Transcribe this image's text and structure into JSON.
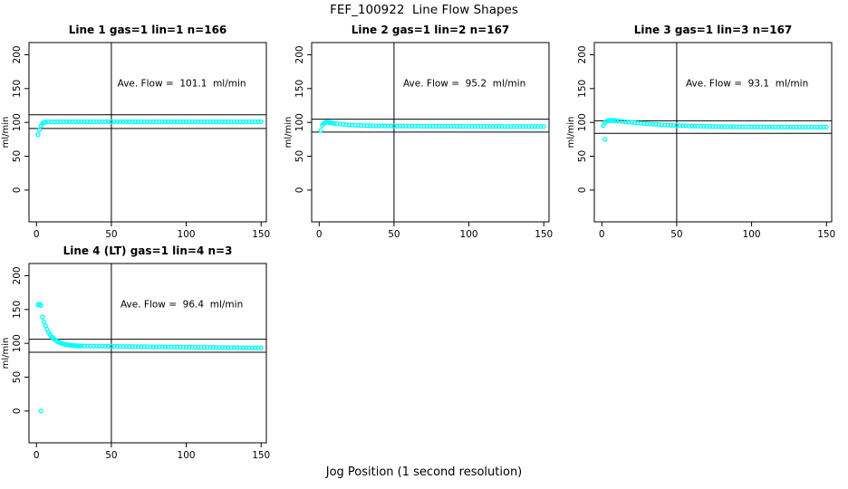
{
  "page": {
    "title": "FEF_100922  Line Flow Shapes",
    "xlabel": "Jog Position (1 second resolution)"
  },
  "chart_settings": {
    "ylabel": "ml/min",
    "xticks": [
      0,
      50,
      100,
      150
    ],
    "yticks": [
      0,
      50,
      100,
      150,
      200
    ],
    "xlim": [
      -5,
      153.5
    ],
    "ylim": [
      -47,
      218
    ],
    "point_color": "#00ffff",
    "line_color": "#000000",
    "vline_x": 50
  },
  "chart_data": [
    {
      "type": "scatter",
      "title": "Line 1 gas=1 lin=1 n=166",
      "annotation": "Ave. Flow =  101.1  ml/min",
      "ave_flow": 101.1,
      "hlines": [
        111.2,
        91.0
      ],
      "outliers": [],
      "points": [
        [
          1,
          82
        ],
        [
          2,
          89
        ],
        [
          3,
          95
        ],
        [
          4,
          98.5
        ],
        [
          5,
          100
        ],
        [
          6,
          100.5
        ],
        [
          8,
          100.8
        ],
        [
          10,
          101
        ],
        [
          12,
          101
        ],
        [
          14,
          101
        ],
        [
          16,
          101
        ],
        [
          18,
          101
        ],
        [
          20,
          101
        ],
        [
          22,
          101
        ],
        [
          24,
          101
        ],
        [
          26,
          101
        ],
        [
          28,
          101
        ],
        [
          30,
          101
        ],
        [
          32,
          101
        ],
        [
          34,
          101
        ],
        [
          36,
          101
        ],
        [
          38,
          101
        ],
        [
          40,
          101
        ],
        [
          42,
          101
        ],
        [
          44,
          101
        ],
        [
          46,
          101
        ],
        [
          48,
          101
        ],
        [
          50,
          101
        ],
        [
          52,
          101
        ],
        [
          54,
          101
        ],
        [
          56,
          101
        ],
        [
          58,
          101
        ],
        [
          60,
          101
        ],
        [
          62,
          101
        ],
        [
          64,
          101
        ],
        [
          66,
          101
        ],
        [
          68,
          101
        ],
        [
          70,
          101
        ],
        [
          72,
          101
        ],
        [
          74,
          101
        ],
        [
          76,
          101
        ],
        [
          78,
          101
        ],
        [
          80,
          101
        ],
        [
          82,
          101
        ],
        [
          84,
          101
        ],
        [
          86,
          101
        ],
        [
          88,
          101
        ],
        [
          90,
          101
        ],
        [
          92,
          101
        ],
        [
          94,
          101
        ],
        [
          96,
          101
        ],
        [
          98,
          101
        ],
        [
          100,
          101
        ],
        [
          102,
          101
        ],
        [
          104,
          101
        ],
        [
          106,
          101
        ],
        [
          108,
          101
        ],
        [
          110,
          101
        ],
        [
          112,
          101
        ],
        [
          114,
          101
        ],
        [
          116,
          101
        ],
        [
          118,
          101
        ],
        [
          120,
          101
        ],
        [
          122,
          101
        ],
        [
          124,
          101
        ],
        [
          126,
          101
        ],
        [
          128,
          101
        ],
        [
          130,
          101
        ],
        [
          132,
          101
        ],
        [
          134,
          101
        ],
        [
          136,
          101
        ],
        [
          138,
          101
        ],
        [
          140,
          101
        ],
        [
          142,
          101
        ],
        [
          144,
          101
        ],
        [
          146,
          101
        ],
        [
          148,
          101
        ],
        [
          150,
          101
        ]
      ]
    },
    {
      "type": "scatter",
      "title": "Line 2 gas=1 lin=2 n=167",
      "annotation": "Ave. Flow =  95.2  ml/min",
      "ave_flow": 95.2,
      "hlines": [
        104.7,
        85.7
      ],
      "outliers": [],
      "points": [
        [
          1,
          88
        ],
        [
          2,
          95.5
        ],
        [
          3,
          98.5
        ],
        [
          4,
          99.8
        ],
        [
          5,
          100.2
        ],
        [
          6,
          100.1
        ],
        [
          7,
          99.8
        ],
        [
          8,
          99.4
        ],
        [
          9,
          99
        ],
        [
          10,
          98.6
        ],
        [
          12,
          98
        ],
        [
          14,
          97.5
        ],
        [
          16,
          97.1
        ],
        [
          18,
          96.7
        ],
        [
          20,
          96.4
        ],
        [
          22,
          96.1
        ],
        [
          24,
          95.9
        ],
        [
          26,
          95.7
        ],
        [
          28,
          95.5
        ],
        [
          30,
          95.4
        ],
        [
          32,
          95.2
        ],
        [
          34,
          95.1
        ],
        [
          36,
          95
        ],
        [
          38,
          94.9
        ],
        [
          40,
          94.9
        ],
        [
          42,
          94.8
        ],
        [
          44,
          94.8
        ],
        [
          46,
          94.7
        ],
        [
          48,
          94.7
        ],
        [
          50,
          94.7
        ],
        [
          52,
          94.6
        ],
        [
          54,
          94.6
        ],
        [
          56,
          94.6
        ],
        [
          58,
          94.5
        ],
        [
          60,
          94.5
        ],
        [
          62,
          94.5
        ],
        [
          64,
          94.5
        ],
        [
          66,
          94.5
        ],
        [
          68,
          94.4
        ],
        [
          70,
          94.4
        ],
        [
          72,
          94.4
        ],
        [
          74,
          94.4
        ],
        [
          76,
          94.4
        ],
        [
          78,
          94.4
        ],
        [
          80,
          94.4
        ],
        [
          82,
          94.3
        ],
        [
          84,
          94.3
        ],
        [
          86,
          94.3
        ],
        [
          88,
          94.3
        ],
        [
          90,
          94.3
        ],
        [
          92,
          94.3
        ],
        [
          94,
          94.3
        ],
        [
          96,
          94.2
        ],
        [
          98,
          94.2
        ],
        [
          100,
          94.2
        ],
        [
          102,
          94.2
        ],
        [
          104,
          94.2
        ],
        [
          106,
          94.2
        ],
        [
          108,
          94.2
        ],
        [
          110,
          94.1
        ],
        [
          112,
          94.1
        ],
        [
          114,
          94.1
        ],
        [
          116,
          94.1
        ],
        [
          118,
          94.1
        ],
        [
          120,
          94.1
        ],
        [
          122,
          94.1
        ],
        [
          124,
          94
        ],
        [
          126,
          94
        ],
        [
          128,
          94
        ],
        [
          130,
          94
        ],
        [
          132,
          94
        ],
        [
          134,
          94
        ],
        [
          136,
          94
        ],
        [
          138,
          94
        ],
        [
          140,
          94
        ],
        [
          142,
          94
        ],
        [
          144,
          94
        ],
        [
          146,
          94
        ],
        [
          148,
          94
        ],
        [
          150,
          94
        ]
      ]
    },
    {
      "type": "scatter",
      "title": "Line 3 gas=1 lin=3 n=167",
      "annotation": "Ave. Flow =  93.1  ml/min",
      "ave_flow": 93.1,
      "hlines": [
        102.4,
        83.8
      ],
      "outliers": [
        [
          2,
          75
        ]
      ],
      "points": [
        [
          1,
          95
        ],
        [
          2,
          99.5
        ],
        [
          3,
          101.5
        ],
        [
          4,
          102.3
        ],
        [
          5,
          102.8
        ],
        [
          6,
          103
        ],
        [
          7,
          103
        ],
        [
          8,
          102.9
        ],
        [
          9,
          102.7
        ],
        [
          10,
          102.4
        ],
        [
          12,
          101.9
        ],
        [
          14,
          101.4
        ],
        [
          16,
          100.9
        ],
        [
          18,
          100.4
        ],
        [
          20,
          100
        ],
        [
          22,
          99.5
        ],
        [
          24,
          99.1
        ],
        [
          26,
          98.7
        ],
        [
          28,
          98.4
        ],
        [
          30,
          98
        ],
        [
          32,
          97.7
        ],
        [
          34,
          97.4
        ],
        [
          36,
          97.1
        ],
        [
          38,
          96.8
        ],
        [
          40,
          96.6
        ],
        [
          42,
          96.3
        ],
        [
          44,
          96.1
        ],
        [
          46,
          95.9
        ],
        [
          48,
          95.7
        ],
        [
          50,
          95.5
        ],
        [
          52,
          95.3
        ],
        [
          54,
          95.2
        ],
        [
          56,
          95
        ],
        [
          58,
          94.9
        ],
        [
          60,
          94.7
        ],
        [
          62,
          94.6
        ],
        [
          64,
          94.5
        ],
        [
          66,
          94.4
        ],
        [
          68,
          94.3
        ],
        [
          70,
          94.2
        ],
        [
          72,
          94.1
        ],
        [
          74,
          94
        ],
        [
          76,
          93.9
        ],
        [
          78,
          93.9
        ],
        [
          80,
          93.8
        ],
        [
          82,
          93.7
        ],
        [
          84,
          93.7
        ],
        [
          86,
          93.6
        ],
        [
          88,
          93.6
        ],
        [
          90,
          93.5
        ],
        [
          92,
          93.5
        ],
        [
          94,
          93.4
        ],
        [
          96,
          93.4
        ],
        [
          98,
          93.4
        ],
        [
          100,
          93.3
        ],
        [
          102,
          93.3
        ],
        [
          104,
          93.3
        ],
        [
          106,
          93.2
        ],
        [
          108,
          93.2
        ],
        [
          110,
          93.2
        ],
        [
          112,
          93.2
        ],
        [
          114,
          93.1
        ],
        [
          116,
          93.1
        ],
        [
          118,
          93.1
        ],
        [
          120,
          93.1
        ],
        [
          122,
          93.1
        ],
        [
          124,
          93.1
        ],
        [
          126,
          93
        ],
        [
          128,
          93
        ],
        [
          130,
          93
        ],
        [
          132,
          93
        ],
        [
          134,
          93
        ],
        [
          136,
          93
        ],
        [
          138,
          93
        ],
        [
          140,
          93
        ],
        [
          142,
          93
        ],
        [
          144,
          93
        ],
        [
          146,
          93
        ],
        [
          148,
          93
        ],
        [
          150,
          93
        ]
      ]
    },
    {
      "type": "scatter",
      "title": "Line 4 (LT) gas=1 lin=4 n=3",
      "annotation": "Ave. Flow =  96.4  ml/min",
      "ave_flow": 96.4,
      "hlines": [
        106.0,
        86.8
      ],
      "outliers": [
        [
          3,
          0
        ]
      ],
      "points": [
        [
          1,
          157
        ],
        [
          2,
          158
        ],
        [
          3,
          156
        ],
        [
          4,
          139
        ],
        [
          5,
          132
        ],
        [
          6,
          126
        ],
        [
          7,
          121
        ],
        [
          8,
          116.5
        ],
        [
          9,
          113
        ],
        [
          10,
          110
        ],
        [
          11,
          108
        ],
        [
          12,
          106
        ],
        [
          13,
          104.2
        ],
        [
          14,
          102.8
        ],
        [
          15,
          101.6
        ],
        [
          16,
          100.7
        ],
        [
          17,
          99.9
        ],
        [
          18,
          99.2
        ],
        [
          19,
          98.6
        ],
        [
          20,
          98.1
        ],
        [
          21,
          97.7
        ],
        [
          22,
          97.4
        ],
        [
          23,
          97.1
        ],
        [
          24,
          96.9
        ],
        [
          25,
          96.7
        ],
        [
          26,
          96.6
        ],
        [
          27,
          96.4
        ],
        [
          28,
          96.3
        ],
        [
          29,
          96.2
        ],
        [
          30,
          96.2
        ],
        [
          32,
          96.1
        ],
        [
          34,
          96
        ],
        [
          36,
          96
        ],
        [
          38,
          95.9
        ],
        [
          40,
          95.9
        ],
        [
          42,
          95.8
        ],
        [
          44,
          95.8
        ],
        [
          46,
          95.7
        ],
        [
          48,
          95.7
        ],
        [
          50,
          95.6
        ],
        [
          52,
          95.6
        ],
        [
          54,
          95.5
        ],
        [
          56,
          95.5
        ],
        [
          58,
          95.4
        ],
        [
          60,
          95.4
        ],
        [
          62,
          95.3
        ],
        [
          64,
          95.3
        ],
        [
          66,
          95.2
        ],
        [
          68,
          95.2
        ],
        [
          70,
          95.1
        ],
        [
          72,
          95.1
        ],
        [
          74,
          95
        ],
        [
          76,
          95
        ],
        [
          78,
          94.9
        ],
        [
          80,
          94.9
        ],
        [
          82,
          94.8
        ],
        [
          84,
          94.8
        ],
        [
          86,
          94.7
        ],
        [
          88,
          94.7
        ],
        [
          90,
          94.6
        ],
        [
          92,
          94.6
        ],
        [
          94,
          94.5
        ],
        [
          96,
          94.5
        ],
        [
          98,
          94.4
        ],
        [
          100,
          94.4
        ],
        [
          102,
          94.3
        ],
        [
          104,
          94.3
        ],
        [
          106,
          94.2
        ],
        [
          108,
          94.2
        ],
        [
          110,
          94.1
        ],
        [
          112,
          94.1
        ],
        [
          114,
          94
        ],
        [
          116,
          94
        ],
        [
          118,
          94
        ],
        [
          120,
          93.9
        ],
        [
          122,
          93.9
        ],
        [
          124,
          93.8
        ],
        [
          126,
          93.8
        ],
        [
          128,
          93.7
        ],
        [
          130,
          93.7
        ],
        [
          132,
          93.6
        ],
        [
          134,
          93.6
        ],
        [
          136,
          93.5
        ],
        [
          138,
          93.5
        ],
        [
          140,
          93.5
        ],
        [
          142,
          93.4
        ],
        [
          144,
          93.4
        ],
        [
          146,
          93.3
        ],
        [
          148,
          93.3
        ],
        [
          150,
          93.3
        ]
      ]
    }
  ]
}
